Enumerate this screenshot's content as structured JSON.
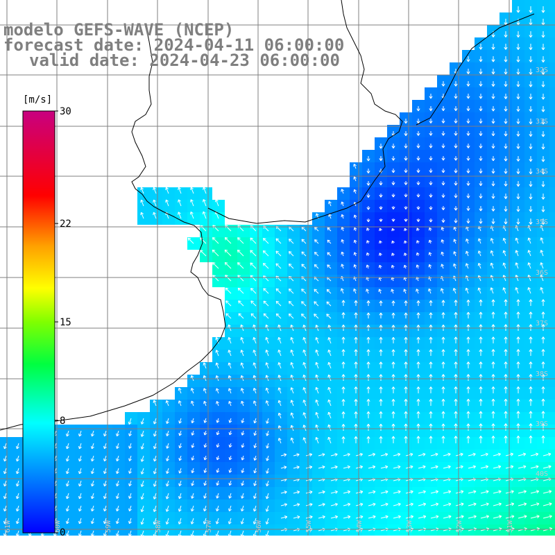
{
  "title": {
    "line1": "modelo GEFS-WAVE (NCEP)",
    "line2": "forecast date: 2024-04-11 06:00:00",
    "line3": "valid date: 2024-04-23 06:00:00"
  },
  "colorbar": {
    "unit": "[m/s]",
    "ticks": [
      "30",
      "22",
      "15",
      "8",
      "0"
    ],
    "tick_values": [
      30,
      22,
      15,
      8,
      0
    ],
    "min": 0,
    "max": 30
  },
  "map": {
    "lat_labels": [
      "32S",
      "33S",
      "34S",
      "35S",
      "36S",
      "37S",
      "38S",
      "39S",
      "40S"
    ],
    "lon_labels": [
      "61W",
      "60W",
      "59W",
      "58W",
      "57W",
      "56W",
      "55W",
      "54W",
      "53W",
      "52W",
      "51W"
    ]
  },
  "colors": {
    "title": "#7f7f7f",
    "land": "#ffffff",
    "grid": "#7f7f7f",
    "arrow": "#ffffff",
    "coast": "#000000"
  }
}
